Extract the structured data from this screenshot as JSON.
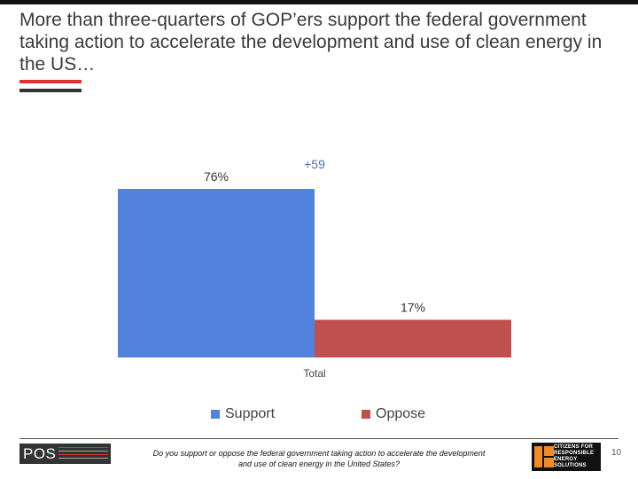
{
  "slide": {
    "title": "More than three-quarters of GOP’ers support the federal government taking action to accelerate the development and use of clean energy in the US…",
    "question": "Do you support or oppose the federal government taking action to accelerate the development and use of clean energy in the United States?",
    "page_number": "10"
  },
  "logos": {
    "pos_text": "POS",
    "cres_lines": [
      "CITIZENS FOR",
      "RESPONSIBLE",
      "ENERGY SOLUTIONS"
    ]
  },
  "colors": {
    "support": "#5182dd",
    "oppose": "#c0504d",
    "diff": "#4a6fb5",
    "accent_red": "#e0332d"
  },
  "chart_data": {
    "type": "bar",
    "categories": [
      "Total"
    ],
    "series": [
      {
        "name": "Support",
        "values": [
          76
        ],
        "labels": [
          "76%"
        ]
      },
      {
        "name": "Oppose",
        "values": [
          17
        ],
        "labels": [
          "17%"
        ]
      }
    ],
    "annotation": "+59",
    "ylim": [
      0,
      100
    ],
    "grid": false,
    "legend": "bottom"
  }
}
